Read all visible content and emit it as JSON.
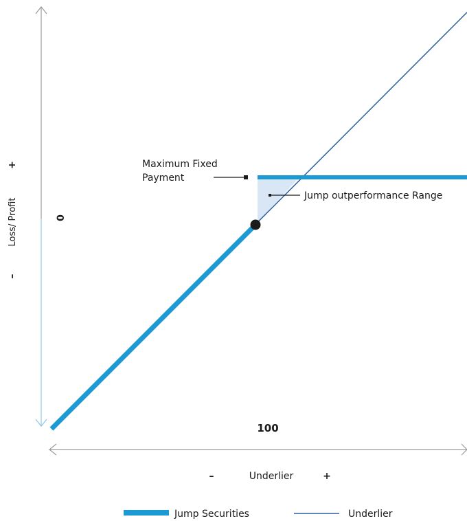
{
  "diagram": {
    "y_axis": {
      "label": "Loss/ Profit",
      "plus": "+",
      "minus": "–",
      "zero": "0"
    },
    "x_axis": {
      "label": "Underlier",
      "plus": "+",
      "minus": "–",
      "strike": "100"
    },
    "annotations": {
      "max_payment_line1": "Maximum Fixed",
      "max_payment_line2": "Payment",
      "range": "Jump outperformance Range"
    },
    "legend": {
      "jump": "Jump Securities",
      "underlier": "Underlier"
    },
    "colors": {
      "jump": "#1b9ad6",
      "underlier": "#2e5e9e",
      "axis": "#9a9a9a",
      "axis_lower": "#8fc4e8",
      "range_fill": "#d8e6f5"
    }
  }
}
